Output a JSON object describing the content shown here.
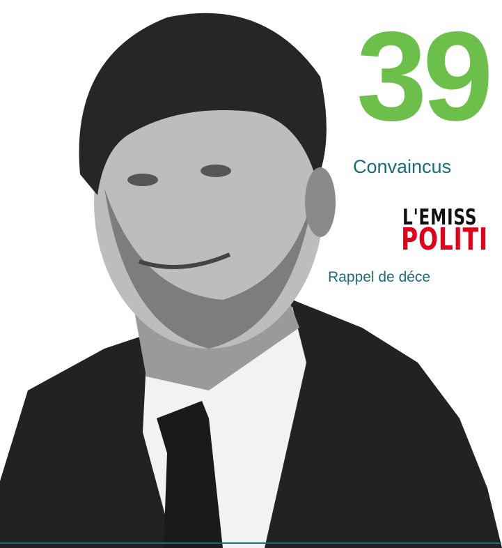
{
  "headline": {
    "number": "39",
    "caption": "Convaincus"
  },
  "logo": {
    "line1": "L'EMISS",
    "line2": "POLITI"
  },
  "note": "Rappel de déce"
}
